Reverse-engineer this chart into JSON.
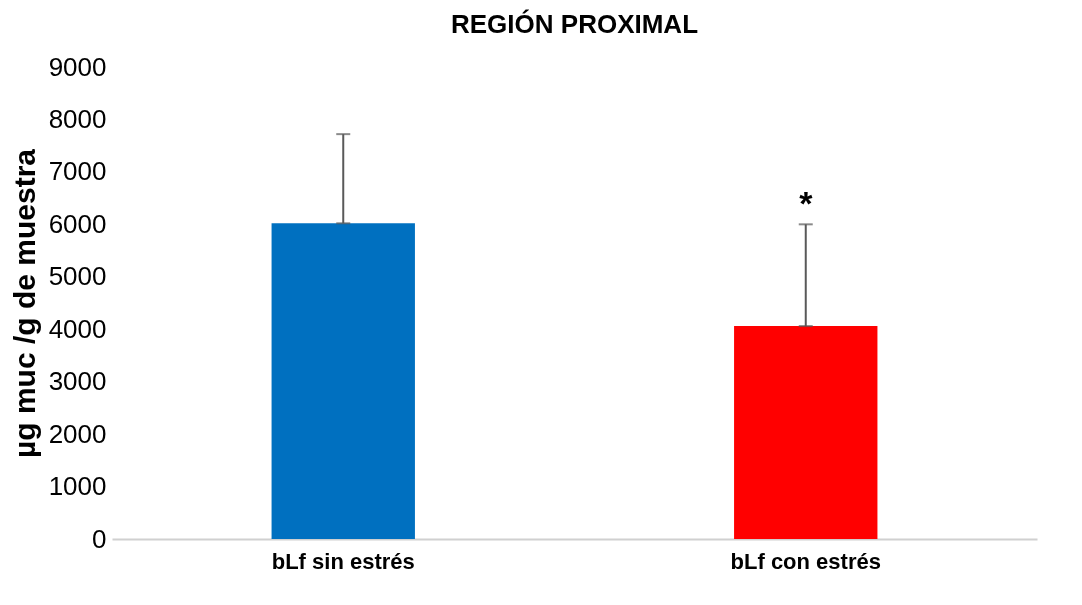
{
  "chart_data": {
    "type": "bar",
    "title": "REGIÓN PROXIMAL",
    "ylabel": "µg muc /g de muestra",
    "categories": [
      "bLf sin estrés",
      "bLf con estrés"
    ],
    "values": [
      6020,
      4060
    ],
    "colors": [
      "#0070c0",
      "#ff0000"
    ],
    "errors": [
      [
        6020,
        7720
      ],
      [
        4060,
        6000
      ]
    ],
    "ylim": [
      0,
      9000
    ],
    "yticks": [
      0,
      1000,
      2000,
      3000,
      4000,
      5000,
      6000,
      7000,
      8000,
      9000
    ],
    "grid": false,
    "annotations": [
      "*"
    ]
  }
}
